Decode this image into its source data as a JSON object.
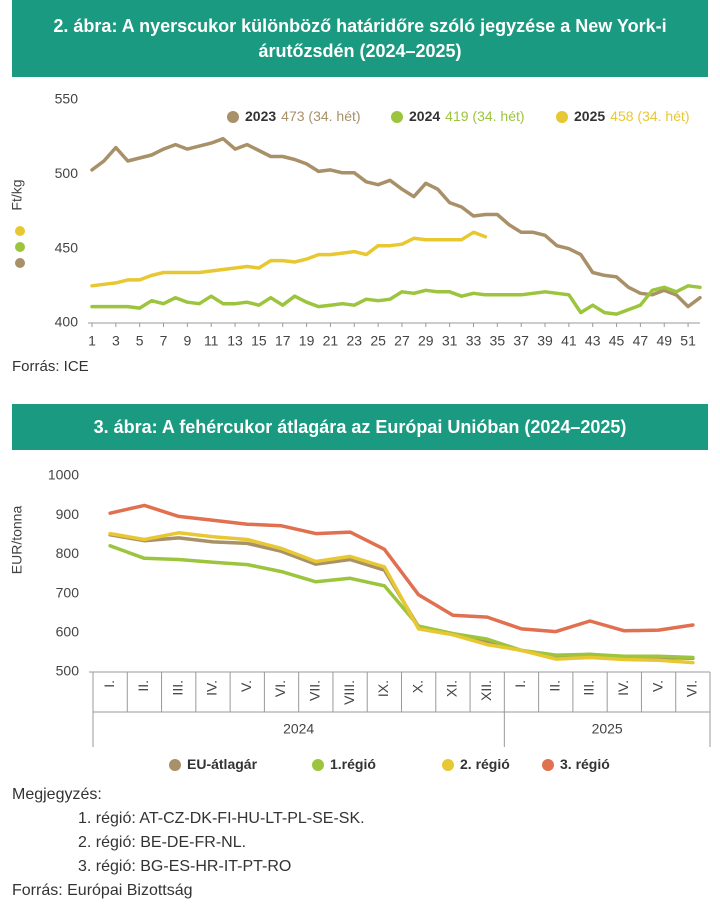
{
  "chart_data": [
    {
      "type": "line",
      "title": "2. ábra: A nyerscukor különböző határidőre szóló jegyzése a New York-i árutőzsdén (2024–2025)",
      "y_label": "Ft/kg",
      "source": "Forrás: ICE",
      "legend": "top-right",
      "grid": false,
      "x": [
        1,
        2,
        3,
        4,
        5,
        6,
        7,
        8,
        9,
        10,
        11,
        12,
        13,
        14,
        15,
        16,
        17,
        18,
        19,
        20,
        21,
        22,
        23,
        24,
        25,
        26,
        27,
        28,
        29,
        30,
        31,
        32,
        33,
        34,
        35,
        36,
        37,
        38,
        39,
        40,
        41,
        42,
        43,
        44,
        45,
        46,
        47,
        48,
        49,
        50,
        51,
        52
      ],
      "xlim": [
        1,
        52
      ],
      "xticks": [
        1,
        3,
        5,
        7,
        9,
        11,
        13,
        15,
        17,
        19,
        21,
        23,
        25,
        27,
        29,
        31,
        33,
        35,
        37,
        39,
        41,
        43,
        45,
        47,
        49,
        51
      ],
      "ylim": [
        400,
        550
      ],
      "yticks": [
        400,
        450,
        500,
        550
      ],
      "series": [
        {
          "name": "2023",
          "note": "473 (34. hét)",
          "color": "#a89068",
          "values": [
            503,
            509,
            518,
            509,
            511,
            513,
            517,
            520,
            517,
            519,
            521,
            524,
            517,
            520,
            516,
            512,
            512,
            510,
            507,
            502,
            503,
            501,
            501,
            495,
            493,
            496,
            490,
            485,
            494,
            490,
            481,
            478,
            472,
            473,
            473,
            466,
            461,
            461,
            459,
            452,
            450,
            446,
            434,
            432,
            431,
            424,
            420,
            419,
            422,
            419,
            411,
            417
          ]
        },
        {
          "name": "2024",
          "note": "419 (34. hét)",
          "color": "#9cc43c",
          "values": [
            411,
            411,
            411,
            411,
            410,
            415,
            413,
            417,
            414,
            413,
            418,
            413,
            413,
            414,
            412,
            417,
            412,
            418,
            414,
            411,
            412,
            413,
            412,
            416,
            415,
            416,
            421,
            420,
            422,
            421,
            421,
            418,
            420,
            419,
            419,
            419,
            419,
            420,
            421,
            420,
            419,
            407,
            412,
            407,
            406,
            409,
            412,
            422,
            424,
            421,
            425,
            424
          ]
        },
        {
          "name": "2025",
          "note": "458 (34. hét)",
          "color": "#e8c832",
          "values": [
            425,
            426,
            427,
            429,
            429,
            432,
            434,
            434,
            434,
            434,
            435,
            436,
            437,
            438,
            437,
            442,
            442,
            441,
            443,
            446,
            446,
            447,
            448,
            446,
            452,
            452,
            453,
            457,
            456,
            456,
            456,
            456,
            461,
            458,
            null,
            null,
            null,
            null,
            null,
            null,
            null,
            null,
            null,
            null,
            null,
            null,
            null,
            null,
            null,
            null,
            null,
            null
          ]
        }
      ]
    },
    {
      "type": "line",
      "title": "3. ábra: A fehércukor átlagára az Európai Unióban (2024–2025)",
      "y_label": "EUR/tonna",
      "legend": "bottom",
      "grid": false,
      "categories": [
        "I.",
        "II.",
        "III.",
        "IV.",
        "V.",
        "VI.",
        "VII.",
        "VIII.",
        "IX.",
        "X.",
        "XI.",
        "XII.",
        "I.",
        "II.",
        "III.",
        "IV.",
        "V.",
        "VI."
      ],
      "x_groups": [
        "2024",
        "2024",
        "2024",
        "2024",
        "2024",
        "2024",
        "2024",
        "2024",
        "2024",
        "2024",
        "2024",
        "2024",
        "2025",
        "2025",
        "2025",
        "2025",
        "2025",
        "2025"
      ],
      "ylim": [
        500,
        1000
      ],
      "yticks": [
        500,
        600,
        700,
        800,
        900,
        1000
      ],
      "series": [
        {
          "name": "EU-átlagár",
          "color": "#a89068",
          "values": [
            850,
            835,
            842,
            832,
            828,
            808,
            775,
            787,
            760,
            615,
            598,
            575,
            555,
            540,
            545,
            537,
            537,
            535
          ]
        },
        {
          "name": "1.régió",
          "color": "#9cc43c",
          "values": [
            822,
            790,
            787,
            780,
            774,
            756,
            730,
            739,
            720,
            617,
            598,
            584,
            555,
            543,
            545,
            540,
            540,
            537
          ]
        },
        {
          "name": "2. régió",
          "color": "#e8c832",
          "values": [
            853,
            838,
            855,
            845,
            838,
            815,
            782,
            795,
            768,
            610,
            595,
            570,
            555,
            533,
            537,
            532,
            530,
            524
          ]
        },
        {
          "name": "3. régió",
          "color": "#e07050",
          "values": [
            905,
            925,
            897,
            887,
            877,
            873,
            853,
            857,
            813,
            697,
            645,
            640,
            610,
            603,
            630,
            605,
            607,
            620
          ]
        }
      ]
    }
  ],
  "notes": {
    "heading": "Megjegyzés:",
    "lines": [
      "1. régió: AT-CZ-DK-FI-HU-LT-PL-SE-SK.",
      "2. régió: BE-DE-FR-NL.",
      "3. régió: BG-ES-HR-IT-PT-RO"
    ],
    "source": "Forrás: Európai Bizottság"
  }
}
